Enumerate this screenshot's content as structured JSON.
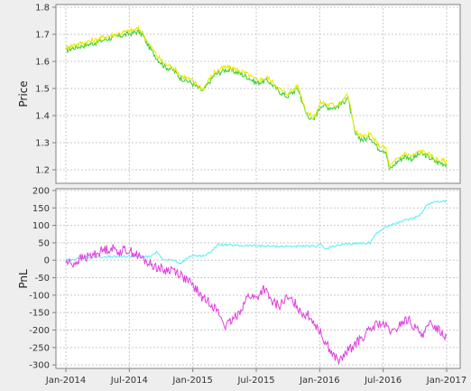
{
  "chart_data": [
    {
      "type": "line",
      "ylabel": "Price",
      "xlabel": "",
      "ylim": [
        1.15,
        1.81
      ],
      "yticks": [
        "1.2",
        "1.3",
        "1.4",
        "1.5",
        "1.6",
        "1.7",
        "1.8"
      ],
      "x_range": [
        "Jan-2014",
        "Jan-2017"
      ],
      "series": [
        {
          "name": "Price (green)",
          "color": "#33cc33",
          "t": [
            0,
            0.02,
            0.05,
            0.08,
            0.1,
            0.13,
            0.16,
            0.19,
            0.2,
            0.22,
            0.24,
            0.26,
            0.28,
            0.3,
            0.33,
            0.36,
            0.39,
            0.42,
            0.45,
            0.48,
            0.5,
            0.53,
            0.56,
            0.58,
            0.61,
            0.63,
            0.65,
            0.67,
            0.69,
            0.71,
            0.73,
            0.74,
            0.76,
            0.78,
            0.8,
            0.82,
            0.84,
            0.85,
            0.87,
            0.89,
            0.91,
            0.93,
            0.95,
            0.97,
            1.0
          ],
          "values": [
            1.64,
            1.65,
            1.66,
            1.67,
            1.68,
            1.69,
            1.7,
            1.71,
            1.7,
            1.65,
            1.61,
            1.58,
            1.57,
            1.54,
            1.52,
            1.49,
            1.55,
            1.57,
            1.56,
            1.54,
            1.52,
            1.53,
            1.49,
            1.47,
            1.5,
            1.41,
            1.38,
            1.44,
            1.43,
            1.43,
            1.45,
            1.47,
            1.33,
            1.31,
            1.32,
            1.28,
            1.27,
            1.2,
            1.23,
            1.25,
            1.24,
            1.26,
            1.25,
            1.23,
            1.22
          ]
        },
        {
          "name": "Price (yellow)",
          "color": "#e8e800",
          "t": [
            0,
            0.02,
            0.05,
            0.08,
            0.1,
            0.13,
            0.16,
            0.19,
            0.2,
            0.22,
            0.24,
            0.26,
            0.28,
            0.3,
            0.33,
            0.36,
            0.39,
            0.42,
            0.45,
            0.48,
            0.5,
            0.53,
            0.56,
            0.58,
            0.61,
            0.63,
            0.65,
            0.67,
            0.69,
            0.71,
            0.73,
            0.74,
            0.76,
            0.78,
            0.8,
            0.82,
            0.84,
            0.85,
            0.87,
            0.89,
            0.91,
            0.93,
            0.95,
            0.97,
            1.0
          ],
          "values": [
            1.65,
            1.66,
            1.67,
            1.68,
            1.69,
            1.7,
            1.71,
            1.72,
            1.71,
            1.66,
            1.62,
            1.59,
            1.58,
            1.55,
            1.53,
            1.5,
            1.56,
            1.58,
            1.57,
            1.55,
            1.53,
            1.54,
            1.5,
            1.48,
            1.51,
            1.42,
            1.39,
            1.45,
            1.44,
            1.44,
            1.46,
            1.48,
            1.34,
            1.32,
            1.33,
            1.29,
            1.28,
            1.21,
            1.24,
            1.26,
            1.25,
            1.27,
            1.26,
            1.24,
            1.23
          ]
        }
      ]
    },
    {
      "type": "line",
      "ylabel": "PnL",
      "xlabel": "",
      "ylim": [
        -310,
        205
      ],
      "yticks": [
        "-300",
        "-250",
        "-200",
        "-150",
        "-100",
        "-50",
        "0",
        "50",
        "100",
        "150",
        "200"
      ],
      "xticks": [
        "Jan-2014",
        "Jul-2014",
        "Jan-2015",
        "Jul-2015",
        "Jan-2016",
        "Jul-2016",
        "Jan-2017"
      ],
      "series": [
        {
          "name": "PnL (cyan)",
          "color": "#55eeee",
          "t": [
            0,
            0.03,
            0.06,
            0.1,
            0.14,
            0.18,
            0.22,
            0.24,
            0.25,
            0.28,
            0.3,
            0.33,
            0.35,
            0.37,
            0.4,
            0.45,
            0.5,
            0.55,
            0.6,
            0.63,
            0.66,
            0.67,
            0.68,
            0.7,
            0.73,
            0.76,
            0.8,
            0.81,
            0.83,
            0.85,
            0.88,
            0.91,
            0.93,
            0.95,
            0.97,
            1.0
          ],
          "values": [
            0,
            5,
            8,
            10,
            10,
            12,
            10,
            25,
            5,
            0,
            -10,
            15,
            12,
            15,
            45,
            42,
            42,
            40,
            40,
            40,
            40,
            50,
            30,
            40,
            45,
            48,
            50,
            70,
            90,
            100,
            110,
            120,
            130,
            160,
            168,
            170
          ]
        },
        {
          "name": "PnL (magenta)",
          "color": "#e040e0",
          "t": [
            0,
            0.02,
            0.04,
            0.06,
            0.08,
            0.1,
            0.12,
            0.14,
            0.16,
            0.18,
            0.2,
            0.22,
            0.24,
            0.26,
            0.28,
            0.3,
            0.32,
            0.34,
            0.36,
            0.38,
            0.4,
            0.42,
            0.44,
            0.46,
            0.48,
            0.5,
            0.52,
            0.54,
            0.56,
            0.58,
            0.6,
            0.62,
            0.64,
            0.66,
            0.68,
            0.7,
            0.72,
            0.74,
            0.76,
            0.78,
            0.8,
            0.82,
            0.84,
            0.86,
            0.88,
            0.9,
            0.92,
            0.94,
            0.96,
            0.98,
            1.0
          ],
          "values": [
            -5,
            -10,
            5,
            10,
            20,
            30,
            35,
            25,
            30,
            20,
            5,
            -10,
            -20,
            -30,
            -25,
            -40,
            -60,
            -80,
            -110,
            -120,
            -150,
            -190,
            -170,
            -140,
            -100,
            -110,
            -80,
            -120,
            -130,
            -110,
            -120,
            -150,
            -160,
            -190,
            -230,
            -270,
            -290,
            -260,
            -240,
            -220,
            -200,
            -180,
            -190,
            -210,
            -180,
            -170,
            -200,
            -210,
            -180,
            -200,
            -220
          ]
        }
      ]
    }
  ]
}
